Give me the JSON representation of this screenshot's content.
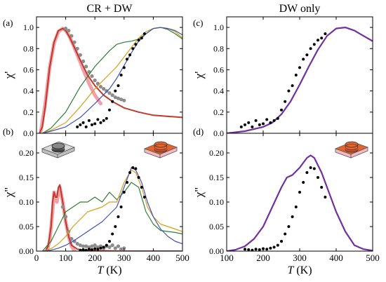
{
  "colors": {
    "dark_red": "#c0392b",
    "pink": "#f2a0a8",
    "gray": "#8c8c8c",
    "green": "#2e7d32",
    "yellow": "#d4a017",
    "blue": "#3f51b5",
    "black": "#000000",
    "purple": "#7030a0",
    "orange": "#e8622c",
    "sample_gray": "#d9d9d9"
  },
  "icons": {
    "panel_b_left": "sample-gray-disk-icon",
    "panel_b_right": "sample-orange-stacked-disk-icon",
    "panel_d": "sample-orange-stacked-disk-icon"
  },
  "chart_data": [
    {
      "id": "a",
      "type": "line",
      "panel_label": "(a)",
      "title": "CR + DW",
      "ylabel": "χ'",
      "xlim": [
        0,
        500
      ],
      "ylim": [
        0,
        1.1
      ],
      "xticks": [
        0,
        100,
        200,
        300,
        400,
        500
      ],
      "yticks": [
        "0.0",
        "0.2",
        "0.4",
        "0.6",
        "0.8",
        "1.0"
      ],
      "ytick_values": [
        0,
        0.2,
        0.4,
        0.6,
        0.8,
        1.0
      ],
      "series": [
        {
          "color_key": "pink",
          "width": 5,
          "kind": "line",
          "x": [
            15,
            30,
            45,
            60,
            75,
            90,
            100,
            110,
            125,
            140,
            160,
            180,
            200,
            220
          ],
          "y": [
            0.02,
            0.28,
            0.62,
            0.85,
            0.96,
            0.99,
            0.97,
            0.93,
            0.84,
            0.74,
            0.6,
            0.47,
            0.36,
            0.28
          ]
        },
        {
          "color_key": "dark_red",
          "width": 2,
          "kind": "line",
          "x": [
            10,
            20,
            30,
            45,
            60,
            75,
            90,
            100,
            115,
            130,
            150,
            175,
            200,
            230,
            260,
            300,
            350,
            400,
            450,
            500
          ],
          "y": [
            0.0,
            0.06,
            0.25,
            0.62,
            0.86,
            0.97,
            0.99,
            0.97,
            0.9,
            0.81,
            0.69,
            0.55,
            0.45,
            0.36,
            0.3,
            0.24,
            0.2,
            0.17,
            0.16,
            0.15
          ]
        },
        {
          "color_key": "gray",
          "kind": "points",
          "r": 2.6,
          "x": [
            100,
            110,
            120,
            130,
            140,
            150,
            160,
            170,
            180,
            190,
            200,
            210,
            220,
            230,
            240,
            250,
            260,
            270,
            280,
            290,
            300
          ],
          "y": [
            0.99,
            0.97,
            0.92,
            0.86,
            0.8,
            0.74,
            0.68,
            0.63,
            0.58,
            0.54,
            0.5,
            0.47,
            0.44,
            0.42,
            0.4,
            0.38,
            0.36,
            0.34,
            0.33,
            0.32,
            0.31
          ]
        },
        {
          "color_key": "green",
          "width": 1.2,
          "kind": "line",
          "x": [
            20,
            50,
            100,
            150,
            200,
            250,
            275,
            300,
            325,
            350,
            375,
            400,
            425,
            450,
            475,
            500
          ],
          "y": [
            0.0,
            0.05,
            0.2,
            0.44,
            0.63,
            0.78,
            0.84,
            0.86,
            0.87,
            0.89,
            0.94,
            0.99,
            1.0,
            0.98,
            0.94,
            0.89
          ]
        },
        {
          "color_key": "yellow",
          "width": 1.2,
          "kind": "line",
          "x": [
            20,
            50,
            100,
            150,
            200,
            250,
            275,
            300,
            325,
            350,
            375,
            400,
            425,
            450,
            475,
            500
          ],
          "y": [
            0.0,
            0.03,
            0.1,
            0.25,
            0.42,
            0.56,
            0.63,
            0.72,
            0.81,
            0.9,
            0.96,
            0.99,
            1.0,
            0.99,
            0.96,
            0.9
          ]
        },
        {
          "color_key": "blue",
          "width": 1.2,
          "kind": "line",
          "x": [
            20,
            50,
            100,
            150,
            200,
            250,
            275,
            300,
            325,
            350,
            375,
            400,
            425,
            450,
            475,
            500
          ],
          "y": [
            0.0,
            0.02,
            0.06,
            0.15,
            0.28,
            0.42,
            0.52,
            0.64,
            0.76,
            0.87,
            0.94,
            0.99,
            1.0,
            0.99,
            0.97,
            0.93
          ]
        },
        {
          "color_key": "black",
          "kind": "points",
          "r": 2,
          "x": [
            140,
            150,
            160,
            170,
            180,
            190,
            200,
            210,
            220,
            230,
            240,
            250,
            260,
            270,
            280,
            290,
            300,
            310,
            320,
            330,
            340,
            350,
            360,
            370
          ],
          "y": [
            0.06,
            0.08,
            0.1,
            0.06,
            0.12,
            0.08,
            0.09,
            0.13,
            0.1,
            0.12,
            0.14,
            0.22,
            0.3,
            0.4,
            0.45,
            0.55,
            0.62,
            0.7,
            0.74,
            0.8,
            0.84,
            0.88,
            0.9,
            0.94
          ]
        }
      ]
    },
    {
      "id": "b",
      "type": "line",
      "panel_label": "(b)",
      "ylabel": "χ\"",
      "xlabel": "T (K)",
      "xlim": [
        0,
        500
      ],
      "ylim": [
        0,
        0.24
      ],
      "xticks": [
        0,
        100,
        200,
        300,
        400,
        500
      ],
      "yticks": [
        "0.00",
        "0.05",
        "0.10",
        "0.15",
        "0.20"
      ],
      "ytick_values": [
        0,
        0.05,
        0.1,
        0.15,
        0.2
      ],
      "series": [
        {
          "color_key": "pink",
          "width": 5,
          "kind": "line",
          "x": [
            35,
            45,
            55,
            60,
            65,
            70,
            75,
            80,
            90,
            100,
            110,
            120,
            130
          ],
          "y": [
            0.0,
            0.02,
            0.08,
            0.12,
            0.11,
            0.1,
            0.12,
            0.13,
            0.1,
            0.06,
            0.03,
            0.01,
            0.0
          ]
        },
        {
          "color_key": "dark_red",
          "width": 2,
          "kind": "line",
          "x": [
            30,
            40,
            50,
            55,
            60,
            65,
            70,
            75,
            80,
            90,
            100,
            110,
            120,
            140,
            160,
            200,
            300,
            400,
            500
          ],
          "y": [
            0.0,
            0.01,
            0.05,
            0.1,
            0.12,
            0.11,
            0.11,
            0.13,
            0.135,
            0.1,
            0.06,
            0.03,
            0.012,
            0.004,
            0.002,
            0.001,
            0.0,
            0.0,
            0.0
          ]
        },
        {
          "color_key": "gray",
          "kind": "points",
          "r": 2.6,
          "x": [
            90,
            100,
            110,
            120,
            130,
            140,
            150,
            160,
            170,
            180,
            190,
            200,
            210,
            220,
            230,
            240,
            250,
            260,
            270,
            280,
            290,
            300
          ],
          "y": [
            0.09,
            0.07,
            0.04,
            0.025,
            0.02,
            0.015,
            0.012,
            0.01,
            0.01,
            0.008,
            0.01,
            0.012,
            0.008,
            0.01,
            0.006,
            0.01,
            0.008,
            0.012,
            0.006,
            0.01,
            0.004,
            0.006
          ]
        },
        {
          "color_key": "green",
          "width": 1.2,
          "kind": "line",
          "x": [
            20,
            50,
            75,
            100,
            125,
            150,
            175,
            200,
            225,
            250,
            275,
            300,
            325,
            350,
            375,
            400,
            425,
            450,
            475,
            500
          ],
          "y": [
            0.0,
            0.02,
            0.05,
            0.08,
            0.09,
            0.1,
            0.1,
            0.11,
            0.1,
            0.12,
            0.105,
            0.12,
            0.14,
            0.13,
            0.08,
            0.055,
            0.042,
            0.04,
            0.038,
            0.035
          ]
        },
        {
          "color_key": "yellow",
          "width": 1.2,
          "kind": "line",
          "x": [
            20,
            50,
            75,
            100,
            125,
            150,
            175,
            200,
            225,
            250,
            275,
            300,
            325,
            340,
            360,
            380,
            400,
            425,
            450,
            475,
            500
          ],
          "y": [
            0.0,
            0.005,
            0.015,
            0.03,
            0.05,
            0.065,
            0.08,
            0.085,
            0.09,
            0.1,
            0.1,
            0.14,
            0.165,
            0.16,
            0.13,
            0.09,
            0.07,
            0.055,
            0.05,
            0.045,
            0.04
          ]
        },
        {
          "color_key": "blue",
          "width": 1.2,
          "kind": "line",
          "x": [
            20,
            50,
            75,
            100,
            125,
            150,
            175,
            200,
            225,
            250,
            275,
            300,
            325,
            340,
            360,
            380,
            400,
            425,
            450,
            475,
            500
          ],
          "y": [
            0.0,
            0.002,
            0.006,
            0.012,
            0.02,
            0.03,
            0.04,
            0.05,
            0.06,
            0.075,
            0.09,
            0.13,
            0.17,
            0.165,
            0.14,
            0.1,
            0.07,
            0.045,
            0.03,
            0.02,
            0.015
          ]
        },
        {
          "color_key": "black",
          "kind": "points",
          "r": 2,
          "x": [
            150,
            160,
            170,
            180,
            190,
            200,
            210,
            220,
            230,
            240,
            250,
            260,
            270,
            280,
            290,
            300,
            310,
            320,
            330,
            340,
            350,
            360,
            370
          ],
          "y": [
            0.002,
            0.003,
            0.002,
            0.004,
            0.003,
            0.005,
            0.004,
            0.006,
            0.008,
            0.012,
            0.02,
            0.035,
            0.05,
            0.07,
            0.09,
            0.12,
            0.14,
            0.16,
            0.17,
            0.168,
            0.15,
            0.13,
            0.11
          ]
        }
      ]
    },
    {
      "id": "c",
      "type": "line",
      "panel_label": "(c)",
      "title": "DW only",
      "ylabel": "χ'",
      "xlim": [
        100,
        500
      ],
      "ylim": [
        0,
        1.1
      ],
      "xticks": [
        100,
        200,
        300,
        400,
        500
      ],
      "yticks": [
        "0.0",
        "0.2",
        "0.4",
        "0.6",
        "0.8",
        "1.0"
      ],
      "ytick_values": [
        0,
        0.2,
        0.4,
        0.6,
        0.8,
        1.0
      ],
      "series": [
        {
          "color_key": "purple",
          "width": 2.2,
          "kind": "line",
          "x": [
            100,
            150,
            200,
            225,
            250,
            275,
            300,
            325,
            350,
            375,
            400,
            425,
            450,
            475,
            500
          ],
          "y": [
            0.0,
            0.02,
            0.06,
            0.1,
            0.18,
            0.3,
            0.46,
            0.63,
            0.79,
            0.92,
            0.99,
            1.0,
            0.97,
            0.92,
            0.87
          ]
        },
        {
          "color_key": "black",
          "kind": "points",
          "r": 2,
          "x": [
            140,
            150,
            160,
            170,
            180,
            190,
            200,
            210,
            220,
            230,
            240,
            250,
            260,
            270,
            280,
            290,
            300,
            310,
            320,
            330,
            340,
            350,
            360,
            370
          ],
          "y": [
            0.06,
            0.08,
            0.1,
            0.06,
            0.12,
            0.08,
            0.09,
            0.13,
            0.1,
            0.12,
            0.14,
            0.22,
            0.3,
            0.4,
            0.45,
            0.55,
            0.62,
            0.7,
            0.74,
            0.8,
            0.84,
            0.88,
            0.9,
            0.94
          ]
        }
      ]
    },
    {
      "id": "d",
      "type": "line",
      "panel_label": "(d)",
      "ylabel": "χ\"",
      "xlabel": "T (K)",
      "xlim": [
        100,
        500
      ],
      "ylim": [
        0,
        0.24
      ],
      "xticks": [
        100,
        200,
        300,
        400,
        500
      ],
      "yticks": [
        "0.00",
        "0.05",
        "0.10",
        "0.15",
        "0.20"
      ],
      "ytick_values": [
        0,
        0.05,
        0.1,
        0.15,
        0.2
      ],
      "series": [
        {
          "color_key": "purple",
          "width": 2.2,
          "kind": "line",
          "x": [
            100,
            125,
            150,
            175,
            200,
            225,
            250,
            265,
            280,
            300,
            320,
            330,
            340,
            360,
            380,
            400,
            425,
            450,
            475,
            500
          ],
          "y": [
            0.0,
            0.003,
            0.01,
            0.025,
            0.05,
            0.09,
            0.13,
            0.15,
            0.155,
            0.17,
            0.19,
            0.195,
            0.19,
            0.16,
            0.12,
            0.08,
            0.04,
            0.012,
            0.004,
            0.001
          ]
        },
        {
          "color_key": "black",
          "kind": "points",
          "r": 2,
          "x": [
            150,
            160,
            170,
            180,
            190,
            200,
            210,
            220,
            230,
            240,
            250,
            260,
            270,
            280,
            290,
            300,
            310,
            320,
            330,
            340,
            350,
            360,
            370
          ],
          "y": [
            0.004,
            0.003,
            0.002,
            0.004,
            0.003,
            0.005,
            0.004,
            0.006,
            0.008,
            0.012,
            0.02,
            0.035,
            0.05,
            0.07,
            0.09,
            0.12,
            0.14,
            0.16,
            0.17,
            0.168,
            0.15,
            0.13,
            0.11
          ]
        }
      ]
    }
  ]
}
